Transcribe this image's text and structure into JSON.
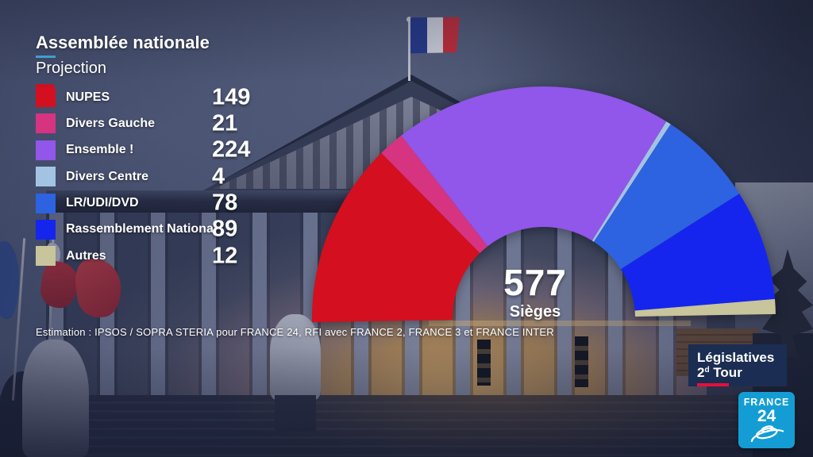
{
  "header": {
    "title": "Assemblée nationale",
    "subtitle": "Projection"
  },
  "chart_data": {
    "type": "hemicycle",
    "title": "Assemblée nationale — Projection",
    "total": 577,
    "seats_label": "Sièges",
    "layout": {
      "orientation": "half-donut, 180 degrees, left to right"
    },
    "series": [
      {
        "name": "NUPES",
        "seats": 149,
        "color": "#d40f1f"
      },
      {
        "name": "Divers Gauche",
        "seats": 21,
        "color": "#d63381"
      },
      {
        "name": "Ensemble !",
        "seats": 224,
        "color": "#9156ea"
      },
      {
        "name": "Divers Centre",
        "seats": 4,
        "color": "#a2c4e2"
      },
      {
        "name": "LR/UDI/DVD",
        "seats": 78,
        "color": "#2d62e0"
      },
      {
        "name": "Rassemblement National",
        "seats": 89,
        "color": "#1525ee"
      },
      {
        "name": "Autres",
        "seats": 12,
        "color": "#c8c49c"
      }
    ]
  },
  "footer": {
    "estimation": "Estimation : IPSOS / SOPRA STERIA pour FRANCE 24, RFI avec FRANCE 2, FRANCE 3 et FRANCE INTER"
  },
  "event_badge": {
    "line1": "Législatives",
    "line2_num": "2",
    "line2_sup": "d",
    "line2_rest": " Tour",
    "bg_color": "#1b2d52",
    "bar_color": "#e3103c"
  },
  "channel_logo": {
    "name": "FRANCE",
    "number": "24",
    "bg_color": "#149dd4"
  },
  "colors": {
    "title_accent_blue": "#3e9fd0",
    "title_accent_red": "#c81126",
    "flag_blue": "#273d96",
    "flag_white": "#e6e9f2",
    "flag_red": "#d52f3c"
  }
}
